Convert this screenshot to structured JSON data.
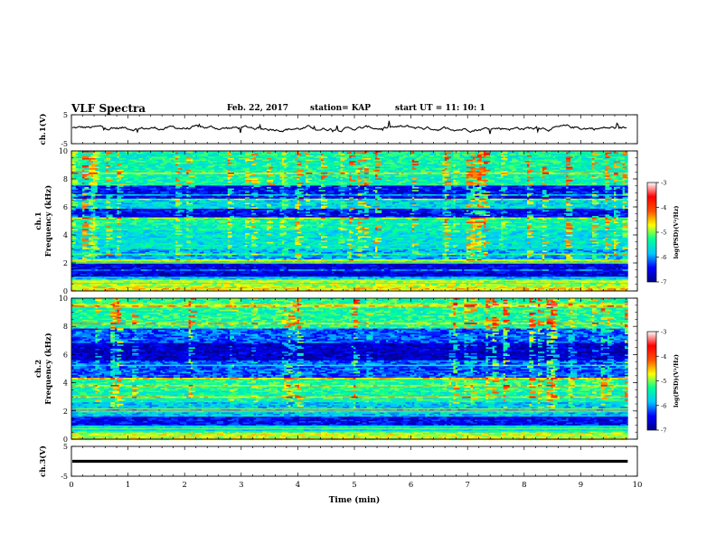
{
  "header": {
    "title": "VLF Spectra",
    "date": "Feb. 22, 2017",
    "station": "station= KAP",
    "start": "start  UT =   11: 10: 1"
  },
  "chart_data": [
    {
      "type": "line",
      "name": "ch1-waveform",
      "ylabel": "ch.1(V)",
      "ylim": [
        -5,
        5
      ],
      "yticks": [
        "5",
        "-5"
      ],
      "xlim": [
        0,
        10
      ],
      "data_end_min": 9.83,
      "description_level": 0.4,
      "color": "#000000"
    },
    {
      "type": "heatmap",
      "name": "ch1-spectrogram",
      "ylabel_channel": "ch.1",
      "ylabel": "Frequency (kHz)",
      "ylim": [
        0,
        10
      ],
      "yticks": [
        "0",
        "2",
        "4",
        "6",
        "8",
        "10"
      ],
      "xlim": [
        0,
        10
      ],
      "data_end_min": 9.83,
      "band_profile": [
        {
          "f0": 0.0,
          "f1": 0.3,
          "level": -4.6
        },
        {
          "f0": 0.3,
          "f1": 0.8,
          "level": -4.9
        },
        {
          "f0": 0.8,
          "f1": 1.0,
          "level": -5.8
        },
        {
          "f0": 1.0,
          "f1": 1.9,
          "level": -6.6
        },
        {
          "f0": 1.9,
          "f1": 2.3,
          "level": -5.3
        },
        {
          "f0": 2.3,
          "f1": 3.0,
          "level": -5.9
        },
        {
          "f0": 3.0,
          "f1": 4.3,
          "level": -5.6
        },
        {
          "f0": 4.3,
          "f1": 5.3,
          "level": -5.4
        },
        {
          "f0": 5.3,
          "f1": 5.9,
          "level": -6.5
        },
        {
          "f0": 5.9,
          "f1": 6.6,
          "level": -5.7
        },
        {
          "f0": 6.6,
          "f1": 7.5,
          "level": -6.5
        },
        {
          "f0": 7.5,
          "f1": 10.0,
          "level": -5.4
        }
      ]
    },
    {
      "type": "heatmap",
      "name": "ch2-spectrogram",
      "ylabel_channel": "ch.2",
      "ylabel": "Frequency (kHz)",
      "ylim": [
        0,
        10
      ],
      "yticks": [
        "0",
        "2",
        "4",
        "6",
        "8",
        "10"
      ],
      "xlim": [
        0,
        10
      ],
      "data_end_min": 9.83,
      "band_profile": [
        {
          "f0": 0.0,
          "f1": 0.5,
          "level": -4.8
        },
        {
          "f0": 0.5,
          "f1": 1.0,
          "level": -5.6
        },
        {
          "f0": 1.0,
          "f1": 1.6,
          "level": -6.5
        },
        {
          "f0": 1.6,
          "f1": 2.6,
          "level": -5.8
        },
        {
          "f0": 2.6,
          "f1": 3.4,
          "level": -5.4
        },
        {
          "f0": 3.4,
          "f1": 4.4,
          "level": -5.3
        },
        {
          "f0": 4.4,
          "f1": 5.6,
          "level": -6.2
        },
        {
          "f0": 5.6,
          "f1": 6.8,
          "level": -6.7
        },
        {
          "f0": 6.8,
          "f1": 7.8,
          "level": -6.2
        },
        {
          "f0": 7.8,
          "f1": 10.0,
          "level": -5.3
        }
      ]
    },
    {
      "type": "line",
      "name": "ch3-waveform",
      "ylabel": "ch.3(V)",
      "ylim": [
        -5,
        5
      ],
      "yticks": [
        "5",
        "-5"
      ],
      "xlim": [
        0,
        10
      ],
      "data_end_min": 9.83,
      "level": 0,
      "color": "#000000"
    }
  ],
  "xaxis": {
    "label": "Time (min)",
    "ticks": [
      "0",
      "1",
      "2",
      "3",
      "4",
      "5",
      "6",
      "7",
      "8",
      "9",
      "10"
    ]
  },
  "colorbar": {
    "label": "log(PSD)(V²/Hz)",
    "range": [
      -7,
      -3
    ],
    "ticks": [
      "-3",
      "-4",
      "-5",
      "-6",
      "-7"
    ],
    "colors": [
      "#00008b",
      "#0000ff",
      "#00c8ff",
      "#00ff96",
      "#ffff00",
      "#ff5000",
      "#ff0000",
      "#ffffff"
    ]
  }
}
